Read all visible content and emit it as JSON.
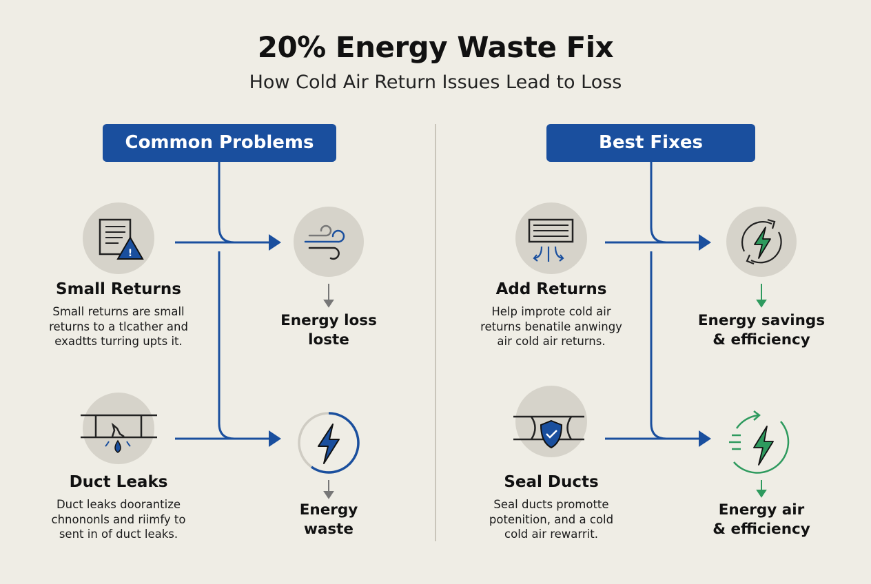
{
  "title": "20% Energy Waste Fix",
  "subtitle": "How Cold Air Return Issues Lead to Loss",
  "colors": {
    "background": "#efede5",
    "blue": "#1a4f9e",
    "green": "#2e9a5e",
    "circle": "#d6d3ca"
  },
  "problems": {
    "header": "Common Problems",
    "items": [
      {
        "title": "Small Returns",
        "icon": "return-vent-warning-icon",
        "desc": [
          "Small returns are small",
          "returns to a tlcather and",
          "exadtts turring upts it."
        ],
        "outcome": [
          "Energy loss",
          "loste"
        ],
        "outcome_icon": "wind-icon"
      },
      {
        "title": "Duct Leaks",
        "icon": "leaking-duct-icon",
        "desc": [
          "Duct leaks doorantize",
          "chnononls and riimfy to",
          "sent in of duct leaks."
        ],
        "outcome": [
          "Energy",
          "waste"
        ],
        "outcome_icon": "lightning-ring-icon"
      }
    ]
  },
  "fixes": {
    "header": "Best Fixes",
    "items": [
      {
        "title": "Add Returns",
        "icon": "return-vent-airflow-icon",
        "desc": [
          "Help improte cold air",
          "returns benatile anwingy",
          "air cold air returns."
        ],
        "outcome": [
          "Energy savings",
          "& efficiency"
        ],
        "outcome_icon": "lightning-cycle-icon"
      },
      {
        "title": "Seal Ducts",
        "icon": "sealed-duct-shield-icon",
        "desc": [
          "Seal ducts promotte",
          "potenition, and a cold",
          "cold air rewarrit."
        ],
        "outcome": [
          "Energy air",
          "& efficiency"
        ],
        "outcome_icon": "lightning-speed-icon"
      }
    ]
  }
}
